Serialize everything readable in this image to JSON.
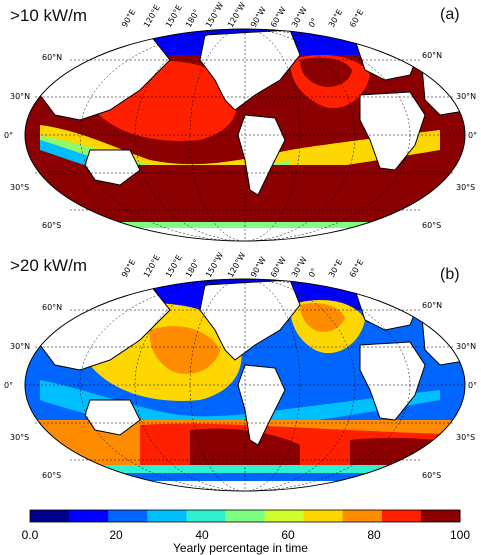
{
  "panels": [
    {
      "title": ">10 kW/m",
      "label": "(a)"
    },
    {
      "title": ">20 kW/m",
      "label": "(b)"
    }
  ],
  "lon_labels": [
    "90°E",
    "120°E",
    "150°E",
    "180°",
    "150°W",
    "120°W",
    "90°W",
    "60°W",
    "30°W",
    "0°",
    "30°E",
    "60°E"
  ],
  "lat_left": [
    "60°N",
    "30°N",
    "0°",
    "30°S",
    "60°S"
  ],
  "lat_right": [
    "60°N",
    "30°N",
    "0°",
    "30°S",
    "60°S"
  ],
  "colorbar": {
    "title": "Yearly percentage in time",
    "ticks": [
      "0.0",
      "20",
      "40",
      "60",
      "80",
      "100"
    ],
    "colors": [
      "#00008f",
      "#0000ff",
      "#0066ff",
      "#00bfff",
      "#2ff0d0",
      "#7fff7f",
      "#d0ff2f",
      "#ffd700",
      "#ff8c00",
      "#ff2000",
      "#8b0000"
    ]
  }
}
